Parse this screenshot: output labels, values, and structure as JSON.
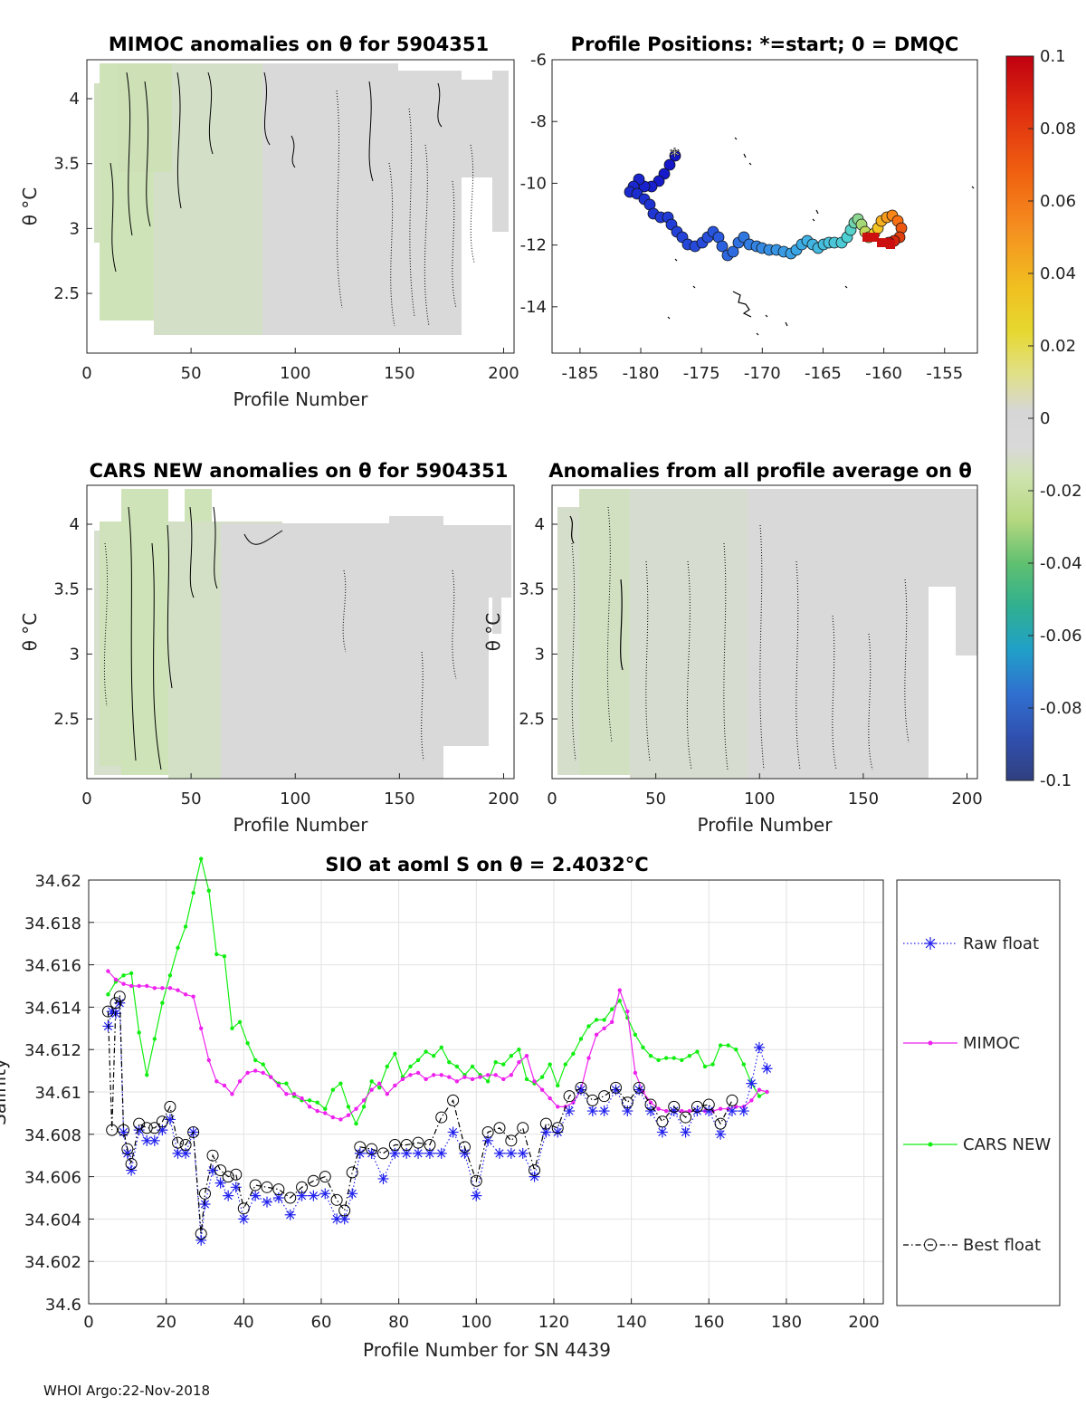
{
  "footer": "WHOI Argo:22-Nov-2018",
  "colors": {
    "raw": "#2222ee",
    "mimoc": "#ee22ee",
    "cars": "#11ee11",
    "best": "#000000",
    "field_gray": "#d9d9d9",
    "field_green": "#cfe5b5"
  },
  "panels": {
    "mimoc": {
      "title": "MIMOC anomalies on θ  for 5904351",
      "xlabel": "Profile Number",
      "ylabel": "θ °C",
      "xticks": [
        "0",
        "50",
        "100",
        "150",
        "200"
      ],
      "yticks": [
        "4",
        "3.5",
        "3",
        "2.5"
      ]
    },
    "positions": {
      "title": "Profile Positions: *=start; 0 = DMQC",
      "xticks": [
        "-185",
        "-180",
        "-175",
        "-170",
        "-165",
        "-160",
        "-155"
      ],
      "yticks": [
        "-6",
        "-8",
        "-10",
        "-12",
        "-14"
      ]
    },
    "cars": {
      "title": "CARS NEW anomalies on θ for 5904351",
      "xlabel": "Profile Number",
      "ylabel": "θ °C",
      "xticks": [
        "0",
        "50",
        "100",
        "150",
        "200"
      ],
      "yticks": [
        "4",
        "3.5",
        "3",
        "2.5"
      ]
    },
    "allavg": {
      "title": "Anomalies from all profile average on θ",
      "xlabel": "Profile Number",
      "ylabel": "θ °C",
      "xticks": [
        "0",
        "50",
        "100",
        "150",
        "200"
      ],
      "yticks": [
        "4",
        "3.5",
        "3",
        "2.5"
      ]
    }
  },
  "colorbar": {
    "ticks": [
      "0.1",
      "0.08",
      "0.06",
      "0.04",
      "0.02",
      "0",
      "-0.02",
      "-0.04",
      "-0.06",
      "-0.08",
      "-0.1"
    ]
  },
  "chart_data": {
    "type": "line",
    "title": "SIO at aoml S on θ = 2.4032°C",
    "xlabel": "Profile Number for SN 4439",
    "ylabel": "Salinity",
    "xlim": [
      0,
      205
    ],
    "ylim": [
      34.6,
      34.62
    ],
    "xticks": [
      "0",
      "20",
      "40",
      "60",
      "80",
      "100",
      "120",
      "140",
      "160",
      "180",
      "200"
    ],
    "yticks": [
      "34.6",
      "34.602",
      "34.604",
      "34.606",
      "34.608",
      "34.61",
      "34.612",
      "34.614",
      "34.616",
      "34.618",
      "34.62"
    ],
    "legend_position": "right",
    "series": [
      {
        "name": "Raw float",
        "key": "raw",
        "style": "dotted-star",
        "x": [
          5,
          6,
          7,
          8,
          9,
          10,
          11,
          13,
          15,
          17,
          19,
          21,
          23,
          25,
          27,
          29,
          30,
          32,
          34,
          36,
          38,
          40,
          43,
          46,
          49,
          52,
          55,
          58,
          61,
          64,
          66,
          68,
          70,
          73,
          76,
          79,
          82,
          85,
          88,
          91,
          94,
          97,
          100,
          103,
          106,
          109,
          112,
          115,
          118,
          121,
          124,
          127,
          130,
          133,
          136,
          139,
          142,
          145,
          148,
          151,
          154,
          157,
          160,
          163,
          166,
          169,
          171,
          173,
          175
        ],
        "values": [
          34.6131,
          34.6138,
          34.6137,
          34.6142,
          34.6081,
          34.6071,
          34.6063,
          34.6082,
          34.6077,
          34.6077,
          34.6082,
          34.6087,
          34.6071,
          34.6071,
          34.6081,
          34.603,
          34.6047,
          34.6063,
          34.6057,
          34.6051,
          34.6055,
          34.604,
          34.6051,
          34.6048,
          34.605,
          34.6042,
          34.6051,
          34.6051,
          34.6052,
          34.604,
          34.604,
          34.6052,
          34.6071,
          34.6071,
          34.6059,
          34.6071,
          34.6071,
          34.6071,
          34.6071,
          34.6071,
          34.6081,
          34.6071,
          34.6051,
          34.6077,
          34.6071,
          34.6071,
          34.6071,
          34.606,
          34.6081,
          34.6081,
          34.6091,
          34.6101,
          34.6091,
          34.6091,
          34.6101,
          34.6091,
          34.6101,
          34.6091,
          34.6081,
          34.6091,
          34.6081,
          34.6091,
          34.6091,
          34.608,
          34.6091,
          34.6091,
          34.6104,
          34.6121,
          34.6111
        ]
      },
      {
        "name": "MIMOC",
        "key": "mimoc",
        "style": "dot-line",
        "x": [
          5,
          7,
          9,
          11,
          13,
          15,
          17,
          19,
          21,
          23,
          25,
          27,
          29,
          31,
          33,
          35,
          37,
          39,
          41,
          43,
          45,
          47,
          49,
          51,
          53,
          55,
          57,
          59,
          61,
          63,
          65,
          67,
          69,
          71,
          73,
          75,
          77,
          79,
          81,
          83,
          85,
          87,
          89,
          91,
          93,
          95,
          97,
          99,
          101,
          103,
          105,
          107,
          109,
          111,
          113,
          115,
          117,
          119,
          121,
          123,
          125,
          127,
          129,
          131,
          133,
          135,
          137,
          139,
          141,
          143,
          145,
          147,
          149,
          151,
          153,
          155,
          157,
          159,
          161,
          163,
          165,
          167,
          169,
          171,
          173,
          175
        ],
        "values": [
          34.6157,
          34.6153,
          34.6151,
          34.615,
          34.615,
          34.615,
          34.6149,
          34.6149,
          34.6149,
          34.6148,
          34.6146,
          34.6145,
          34.613,
          34.6115,
          34.6105,
          34.6103,
          34.6099,
          34.6105,
          34.6109,
          34.611,
          34.6109,
          34.6107,
          34.6103,
          34.6099,
          34.6099,
          34.6097,
          34.6093,
          34.6091,
          34.609,
          34.6088,
          34.6087,
          34.6089,
          34.6092,
          34.6096,
          34.6101,
          34.6104,
          34.6099,
          34.6103,
          34.6106,
          34.6108,
          34.6109,
          34.6106,
          34.6108,
          34.6108,
          34.6107,
          34.6105,
          34.6107,
          34.6106,
          34.6107,
          34.6108,
          34.6108,
          34.6106,
          34.6108,
          34.6114,
          34.6117,
          34.6105,
          34.6101,
          34.6097,
          34.6093,
          34.6093,
          34.6095,
          34.6101,
          34.6116,
          34.6127,
          34.613,
          34.6133,
          34.6148,
          34.6138,
          34.6109,
          34.61,
          34.6095,
          34.6092,
          34.6091,
          34.6091,
          34.6091,
          34.6091,
          34.6091,
          34.6091,
          34.6091,
          34.6092,
          34.6092,
          34.6093,
          34.6093,
          34.6096,
          34.6101,
          34.61
        ]
      },
      {
        "name": "CARS NEW",
        "key": "cars",
        "style": "dot-line",
        "x": [
          5,
          7,
          9,
          11,
          13,
          15,
          17,
          19,
          21,
          23,
          25,
          27,
          29,
          31,
          33,
          35,
          37,
          39,
          41,
          43,
          45,
          47,
          49,
          51,
          53,
          55,
          57,
          59,
          61,
          63,
          65,
          67,
          69,
          71,
          73,
          75,
          77,
          79,
          81,
          83,
          85,
          87,
          89,
          91,
          93,
          95,
          97,
          99,
          101,
          103,
          105,
          107,
          109,
          111,
          113,
          115,
          117,
          119,
          121,
          123,
          125,
          127,
          129,
          131,
          133,
          135,
          137,
          139,
          141,
          143,
          145,
          147,
          149,
          151,
          153,
          155,
          157,
          159,
          161,
          163,
          165,
          167,
          169,
          171,
          173,
          175
        ],
        "values": [
          34.6146,
          34.6152,
          34.6155,
          34.6156,
          34.6128,
          34.6108,
          34.6125,
          34.6142,
          34.6155,
          34.6168,
          34.6178,
          34.6194,
          34.621,
          34.6195,
          34.6165,
          34.6164,
          34.613,
          34.6133,
          34.6123,
          34.6115,
          34.6113,
          34.6107,
          34.6104,
          34.6104,
          34.6098,
          34.6096,
          34.6096,
          34.6095,
          34.6092,
          34.6101,
          34.6104,
          34.6093,
          34.6085,
          34.6093,
          34.6105,
          34.6102,
          34.6112,
          34.6118,
          34.6107,
          34.6112,
          34.6115,
          34.6119,
          34.6117,
          34.6121,
          34.6114,
          34.6112,
          34.6108,
          34.6112,
          34.6108,
          34.6105,
          34.6114,
          34.6113,
          34.6117,
          34.612,
          34.6106,
          34.6104,
          34.6107,
          34.6113,
          34.6103,
          34.6113,
          34.6118,
          34.6125,
          34.6131,
          34.6134,
          34.6134,
          34.6139,
          34.6143,
          34.6135,
          34.6127,
          34.6121,
          34.6117,
          34.6115,
          34.6116,
          34.6116,
          34.6115,
          34.6117,
          34.6119,
          34.6112,
          34.6113,
          34.6122,
          34.6122,
          34.612,
          34.6113,
          34.6104,
          34.6098,
          34.61
        ]
      },
      {
        "name": "Best float",
        "key": "best",
        "style": "dashdot-circle",
        "x": [
          5,
          6,
          7,
          8,
          9,
          10,
          11,
          13,
          15,
          17,
          19,
          21,
          23,
          25,
          27,
          29,
          30,
          32,
          34,
          36,
          38,
          40,
          43,
          46,
          49,
          52,
          55,
          58,
          61,
          64,
          66,
          68,
          70,
          73,
          76,
          79,
          82,
          85,
          88,
          91,
          94,
          97,
          100,
          103,
          106,
          109,
          112,
          115,
          118,
          121,
          124,
          127,
          130,
          133,
          136,
          139,
          142,
          145,
          148,
          151,
          154,
          157,
          160,
          163,
          166
        ],
        "values": [
          34.6138,
          34.6082,
          34.6142,
          34.6145,
          34.6082,
          34.6073,
          34.6066,
          34.6085,
          34.6083,
          34.6083,
          34.6086,
          34.6093,
          34.6076,
          34.6075,
          34.6081,
          34.6033,
          34.6052,
          34.607,
          34.6063,
          34.606,
          34.6061,
          34.6045,
          34.6056,
          34.6055,
          34.6054,
          34.605,
          34.6055,
          34.6058,
          34.606,
          34.6049,
          34.6044,
          34.6062,
          34.6074,
          34.6073,
          34.6071,
          34.6075,
          34.6075,
          34.6076,
          34.6075,
          34.6088,
          34.6096,
          34.6074,
          34.6058,
          34.6081,
          34.6083,
          34.6077,
          34.6083,
          34.6063,
          34.6085,
          34.6083,
          34.6098,
          34.6102,
          34.6096,
          34.6098,
          34.6102,
          34.6095,
          34.6102,
          34.6094,
          34.6086,
          34.6093,
          34.6088,
          34.6093,
          34.6094,
          34.6085,
          34.6096
        ]
      }
    ]
  }
}
